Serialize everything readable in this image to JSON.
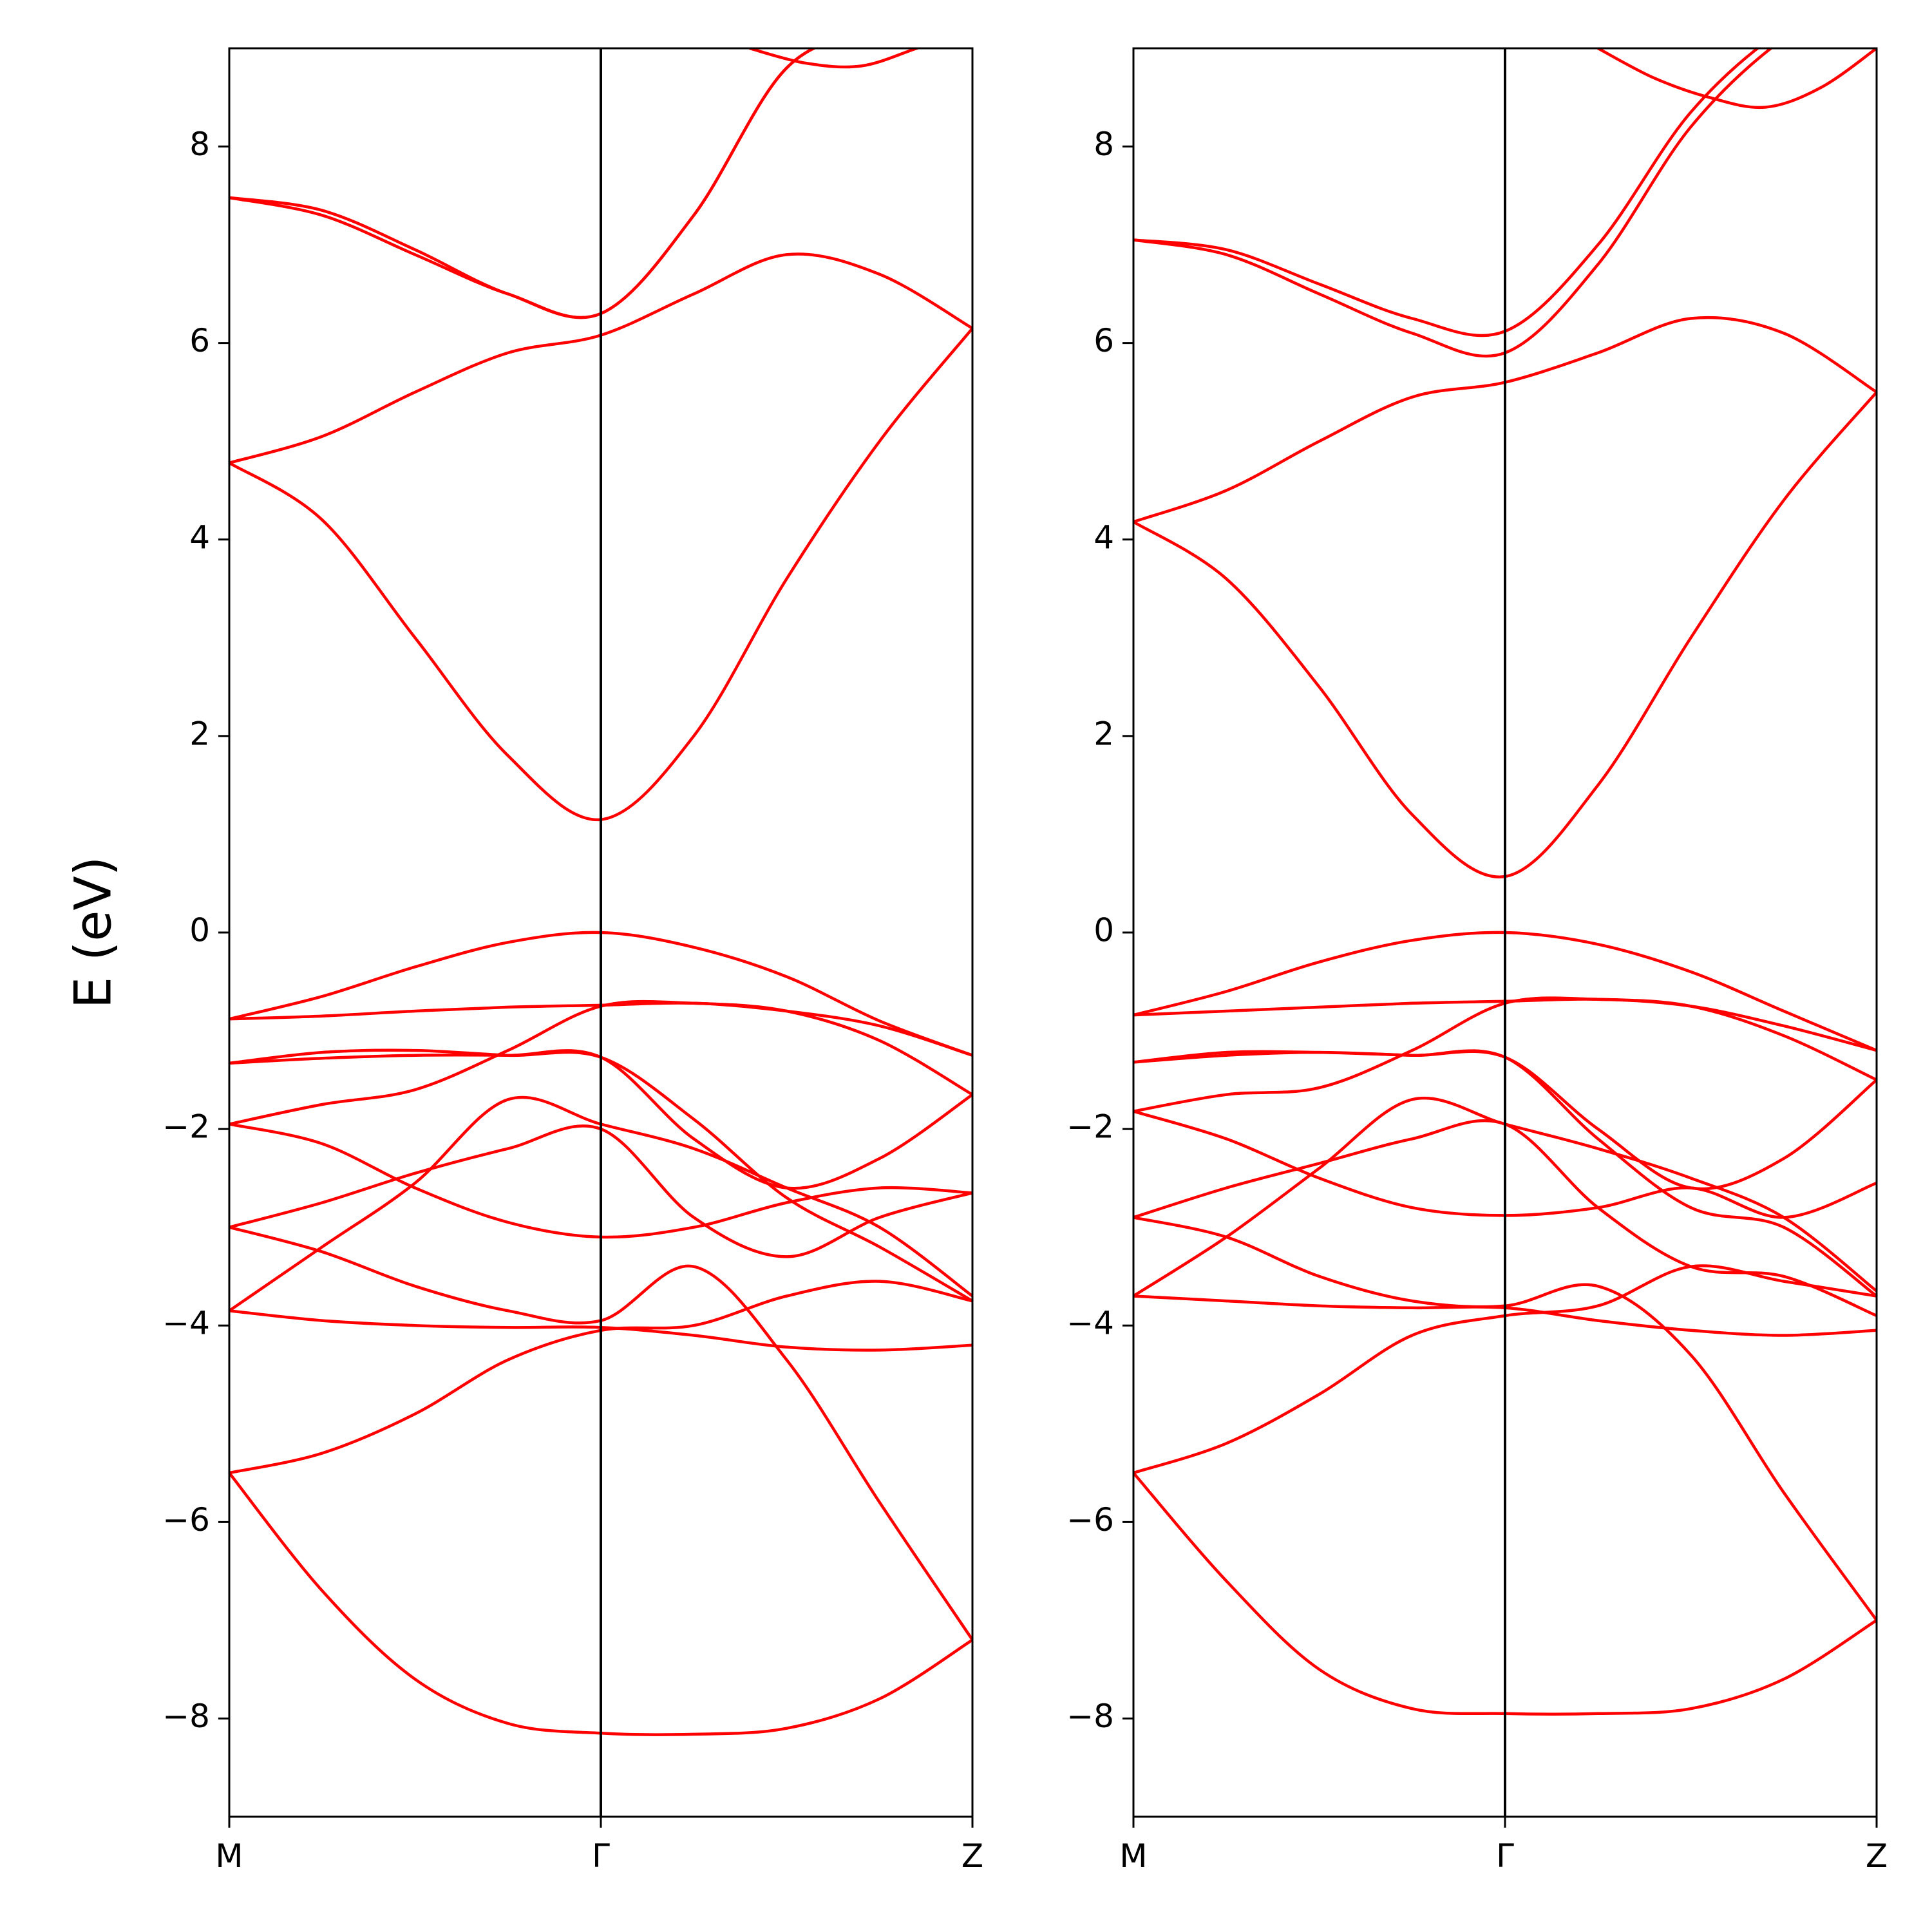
{
  "figure": {
    "ylabel": "E (eV)"
  },
  "chart_data": [
    {
      "type": "line",
      "panel": "left",
      "title": "",
      "xlabel": "",
      "ylabel": "E (eV)",
      "xlim": [
        0,
        2
      ],
      "ylim": [
        -9,
        9
      ],
      "x_ticks": [
        0,
        1,
        2
      ],
      "x_tick_labels": [
        "M",
        "Γ",
        "Z"
      ],
      "y_ticks": [
        -8,
        -6,
        -4,
        -2,
        0,
        2,
        4,
        6,
        8
      ],
      "y_tick_labels": [
        "−8",
        "−6",
        "−4",
        "−2",
        "0",
        "2",
        "4",
        "6",
        "8"
      ],
      "vertical_lines": [
        1
      ],
      "line_color": "#ff0000",
      "grid": false,
      "series": [
        {
          "x": [
            0,
            0.25,
            0.5,
            0.75,
            1.0,
            1.25,
            1.5,
            1.75,
            2.0
          ],
          "y": [
            -5.5,
            -6.7,
            -7.6,
            -8.05,
            -8.15,
            -8.16,
            -8.1,
            -7.8,
            -7.2
          ]
        },
        {
          "x": [
            0,
            0.25,
            0.5,
            0.75,
            1.0,
            1.25,
            1.5,
            1.75,
            2.0
          ],
          "y": [
            -5.5,
            -5.3,
            -4.9,
            -4.35,
            -4.05,
            -4.0,
            -3.7,
            -3.55,
            -3.75
          ]
        },
        {
          "x": [
            0,
            0.25,
            0.5,
            0.75,
            1.0,
            1.25,
            1.5,
            1.75,
            2.0
          ],
          "y": [
            -3.85,
            -3.95,
            -4.0,
            -4.02,
            -4.02,
            -4.1,
            -4.22,
            -4.25,
            -4.2
          ]
        },
        {
          "x": [
            0,
            0.25,
            0.5,
            0.75,
            1.0,
            1.25,
            1.5,
            1.75,
            2.0
          ],
          "y": [
            -3.85,
            -3.2,
            -2.55,
            -1.7,
            -1.95,
            -2.2,
            -2.6,
            -3.0,
            -3.7
          ]
        },
        {
          "x": [
            0,
            0.25,
            0.5,
            0.75,
            1.0,
            1.25,
            1.5,
            1.75,
            2.0
          ],
          "y": [
            -3.0,
            -3.25,
            -3.6,
            -3.85,
            -3.95,
            -3.4,
            -4.35,
            -5.8,
            -7.2
          ]
        },
        {
          "x": [
            0,
            0.25,
            0.5,
            0.75,
            1.0,
            1.25,
            1.5,
            1.75,
            2.0
          ],
          "y": [
            -3.0,
            -2.75,
            -2.45,
            -2.2,
            -2.0,
            -2.9,
            -3.3,
            -2.9,
            -2.65
          ]
        },
        {
          "x": [
            0,
            0.25,
            0.5,
            0.75,
            1.0,
            1.25,
            1.5,
            1.75,
            2.0
          ],
          "y": [
            -1.95,
            -2.15,
            -2.6,
            -2.95,
            -3.1,
            -3.0,
            -2.75,
            -2.6,
            -2.65
          ]
        },
        {
          "x": [
            0,
            0.25,
            0.5,
            0.75,
            1.0,
            1.25,
            1.5,
            1.75,
            2.0
          ],
          "y": [
            -1.95,
            -1.75,
            -1.6,
            -1.2,
            -0.75,
            -0.72,
            -0.8,
            -0.95,
            -1.25
          ]
        },
        {
          "x": [
            0,
            0.25,
            0.5,
            0.75,
            1.0,
            1.25,
            1.5,
            1.75,
            2.0
          ],
          "y": [
            -1.33,
            -1.28,
            -1.25,
            -1.25,
            -1.27,
            -2.1,
            -2.6,
            -2.3,
            -1.65
          ]
        },
        {
          "x": [
            0,
            0.25,
            0.5,
            0.75,
            1.0,
            1.25,
            1.5,
            1.75,
            2.0
          ],
          "y": [
            -1.33,
            -1.22,
            -1.2,
            -1.25,
            -1.27,
            -1.9,
            -2.7,
            -3.2,
            -3.75
          ]
        },
        {
          "x": [
            0,
            0.25,
            0.5,
            0.75,
            1.0,
            1.25,
            1.5,
            1.75,
            2.0
          ],
          "y": [
            -0.88,
            -0.85,
            -0.8,
            -0.76,
            -0.74,
            -0.72,
            -0.8,
            -1.1,
            -1.65
          ]
        },
        {
          "x": [
            0,
            0.25,
            0.5,
            0.75,
            1.0,
            1.25,
            1.5,
            1.75,
            2.0
          ],
          "y": [
            -0.88,
            -0.65,
            -0.35,
            -0.1,
            0.0,
            -0.15,
            -0.45,
            -0.9,
            -1.25
          ]
        },
        {
          "x": [
            0,
            0.25,
            0.5,
            0.75,
            1.0,
            1.25,
            1.5,
            1.75,
            2.0
          ],
          "y": [
            4.78,
            4.2,
            3.0,
            1.8,
            1.15,
            2.0,
            3.6,
            5.0,
            6.15
          ]
        },
        {
          "x": [
            0,
            0.25,
            0.5,
            0.75,
            1.0,
            1.25,
            1.5,
            1.75,
            2.0
          ],
          "y": [
            4.78,
            5.05,
            5.5,
            5.9,
            6.08,
            6.5,
            6.9,
            6.7,
            6.15
          ]
        },
        {
          "x": [
            0,
            0.25,
            0.5,
            0.75,
            1.0,
            1.25,
            1.5,
            1.75,
            2.0
          ],
          "y": [
            7.48,
            7.35,
            6.95,
            6.5,
            6.3,
            7.3,
            8.8,
            9.2,
            9.5
          ]
        },
        {
          "x": [
            0,
            0.25,
            0.5,
            0.75,
            1.0,
            1.25,
            1.5,
            1.75,
            2.0
          ],
          "y": [
            7.48,
            7.3,
            6.9,
            6.5,
            6.3,
            7.3,
            8.8,
            9.2,
            9.5
          ]
        },
        {
          "x": [
            1.4,
            1.55,
            1.7,
            1.85,
            2.0
          ],
          "y": [
            9.0,
            8.85,
            8.82,
            9.0,
            9.2
          ]
        }
      ]
    },
    {
      "type": "line",
      "panel": "right",
      "title": "",
      "xlabel": "",
      "ylabel": "",
      "xlim": [
        0,
        2
      ],
      "ylim": [
        -9,
        9
      ],
      "x_ticks": [
        0,
        1,
        2
      ],
      "x_tick_labels": [
        "M",
        "Γ",
        "Z"
      ],
      "y_ticks": [
        -8,
        -6,
        -4,
        -2,
        0,
        2,
        4,
        6,
        8
      ],
      "y_tick_labels": [
        "−8",
        "−6",
        "−4",
        "−2",
        "0",
        "2",
        "4",
        "6",
        "8"
      ],
      "vertical_lines": [
        1
      ],
      "line_color": "#ff0000",
      "grid": false,
      "series": [
        {
          "x": [
            0,
            0.25,
            0.5,
            0.75,
            1.0,
            1.25,
            1.5,
            1.75,
            2.0
          ],
          "y": [
            -5.5,
            -6.6,
            -7.5,
            -7.9,
            -7.95,
            -7.95,
            -7.9,
            -7.6,
            -7.0
          ]
        },
        {
          "x": [
            0,
            0.25,
            0.5,
            0.75,
            1.0,
            1.25,
            1.5,
            1.75,
            2.0
          ],
          "y": [
            -5.5,
            -5.2,
            -4.7,
            -4.1,
            -3.9,
            -3.8,
            -3.4,
            -3.55,
            -3.7
          ]
        },
        {
          "x": [
            0,
            0.25,
            0.5,
            0.75,
            1.0,
            1.25,
            1.5,
            1.75,
            2.0
          ],
          "y": [
            -3.7,
            -3.75,
            -3.8,
            -3.82,
            -3.82,
            -3.95,
            -4.05,
            -4.1,
            -4.05
          ]
        },
        {
          "x": [
            0,
            0.25,
            0.5,
            0.75,
            1.0,
            1.25,
            1.5,
            1.75,
            2.0
          ],
          "y": [
            -3.7,
            -3.1,
            -2.4,
            -1.7,
            -1.95,
            -2.2,
            -2.5,
            -2.9,
            -3.65
          ]
        },
        {
          "x": [
            0,
            0.25,
            0.5,
            0.75,
            1.0,
            1.25,
            1.5,
            1.75,
            2.0
          ],
          "y": [
            -2.9,
            -3.1,
            -3.5,
            -3.75,
            -3.8,
            -3.6,
            -4.3,
            -5.7,
            -7.0
          ]
        },
        {
          "x": [
            0,
            0.25,
            0.5,
            0.75,
            1.0,
            1.25,
            1.5,
            1.75,
            2.0
          ],
          "y": [
            -2.9,
            -2.6,
            -2.35,
            -2.1,
            -1.95,
            -2.8,
            -3.4,
            -3.5,
            -3.9
          ]
        },
        {
          "x": [
            0,
            0.25,
            0.5,
            0.75,
            1.0,
            1.25,
            1.5,
            1.75,
            2.0
          ],
          "y": [
            -1.82,
            -2.1,
            -2.5,
            -2.8,
            -2.88,
            -2.8,
            -2.6,
            -2.9,
            -2.55
          ]
        },
        {
          "x": [
            0,
            0.25,
            0.5,
            0.75,
            1.0,
            1.25,
            1.5,
            1.75,
            2.0
          ],
          "y": [
            -1.82,
            -1.65,
            -1.58,
            -1.2,
            -0.72,
            -0.68,
            -0.75,
            -0.95,
            -1.2
          ]
        },
        {
          "x": [
            0,
            0.25,
            0.5,
            0.75,
            1.0,
            1.25,
            1.5,
            1.75,
            2.0
          ],
          "y": [
            -1.32,
            -1.25,
            -1.22,
            -1.25,
            -1.27,
            -2.0,
            -2.6,
            -2.3,
            -1.5
          ]
        },
        {
          "x": [
            0,
            0.25,
            0.5,
            0.75,
            1.0,
            1.25,
            1.5,
            1.75,
            2.0
          ],
          "y": [
            -1.32,
            -1.22,
            -1.22,
            -1.25,
            -1.27,
            -2.1,
            -2.8,
            -3.0,
            -3.7
          ]
        },
        {
          "x": [
            0,
            0.25,
            0.5,
            0.75,
            1.0,
            1.25,
            1.5,
            1.75,
            2.0
          ],
          "y": [
            -0.84,
            -0.8,
            -0.76,
            -0.72,
            -0.7,
            -0.68,
            -0.75,
            -1.05,
            -1.5
          ]
        },
        {
          "x": [
            0,
            0.25,
            0.5,
            0.75,
            1.0,
            1.25,
            1.5,
            1.75,
            2.0
          ],
          "y": [
            -0.84,
            -0.6,
            -0.3,
            -0.08,
            0.0,
            -0.12,
            -0.4,
            -0.8,
            -1.2
          ]
        },
        {
          "x": [
            0,
            0.25,
            0.5,
            0.75,
            1.0,
            1.25,
            1.5,
            1.75,
            2.0
          ],
          "y": [
            4.18,
            3.6,
            2.5,
            1.2,
            0.57,
            1.5,
            3.0,
            4.4,
            5.5
          ]
        },
        {
          "x": [
            0,
            0.25,
            0.5,
            0.75,
            1.0,
            1.25,
            1.5,
            1.75,
            2.0
          ],
          "y": [
            4.18,
            4.5,
            5.0,
            5.45,
            5.6,
            5.9,
            6.25,
            6.1,
            5.5
          ]
        },
        {
          "x": [
            0,
            0.25,
            0.5,
            0.75,
            1.0,
            1.25,
            1.5,
            1.75,
            2.0
          ],
          "y": [
            7.05,
            6.9,
            6.5,
            6.1,
            5.9,
            6.8,
            8.2,
            9.1,
            9.6
          ]
        },
        {
          "x": [
            0,
            0.25,
            0.5,
            0.75,
            1.0,
            1.25,
            1.5,
            1.75,
            2.0
          ],
          "y": [
            7.05,
            6.95,
            6.6,
            6.25,
            6.12,
            7.0,
            8.35,
            9.2,
            9.7
          ]
        },
        {
          "x": [
            1.25,
            1.4,
            1.55,
            1.7,
            1.85,
            2.0
          ],
          "y": [
            9.0,
            8.7,
            8.5,
            8.4,
            8.6,
            9.0
          ]
        }
      ]
    }
  ]
}
